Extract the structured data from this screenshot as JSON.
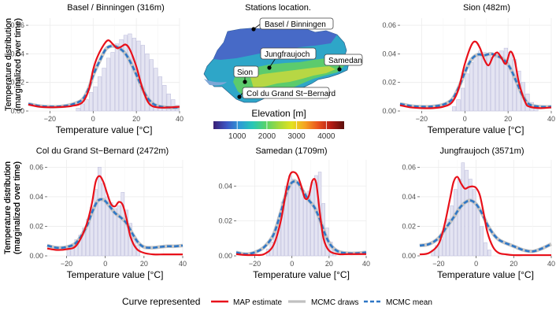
{
  "colors": {
    "map": "#e8101a",
    "draws": "#c0c0c0",
    "mean": "#2f77c6",
    "hist_fill": "#e4e4f2",
    "hist_stroke": "#b9b9da",
    "grid": "#ececec",
    "lake": "#7ea7d6"
  },
  "chart_data": [
    {
      "type": "line",
      "title": "Basel / Binningen (316m)",
      "xlabel": "Temperature value [°C]",
      "ylabel": "Temperature distribution (marginalized over time)",
      "xlim": [
        -30,
        40
      ],
      "ylim": [
        0,
        0.065
      ],
      "xticks": [
        -20,
        0,
        20,
        40
      ],
      "yticks": [
        0,
        0.02,
        0.04,
        0.06
      ],
      "xticklabels": [
        "−20",
        "0",
        "20",
        "40"
      ],
      "yticklabels": [
        "0.00",
        "0.02",
        "0.04",
        "0.06"
      ],
      "grid": true,
      "histogram": {
        "bin_start": -8,
        "bin_width": 2,
        "values": [
          0.002,
          0.005,
          0.008,
          0.013,
          0.017,
          0.024,
          0.03,
          0.037,
          0.041,
          0.047,
          0.05,
          0.053,
          0.054,
          0.051,
          0.049,
          0.046,
          0.04,
          0.036,
          0.03,
          0.024,
          0.018,
          0.012,
          0.008,
          0.004
        ]
      },
      "series": [
        {
          "name": "MAP estimate",
          "x": [
            -30,
            -25,
            -20,
            -15,
            -10,
            -5,
            -2,
            0,
            2,
            5,
            7,
            9,
            11,
            13,
            15,
            17,
            20,
            23,
            26,
            30,
            35,
            40
          ],
          "y": [
            0.0045,
            0.003,
            0.0026,
            0.0028,
            0.0035,
            0.006,
            0.015,
            0.029,
            0.038,
            0.0465,
            0.0495,
            0.047,
            0.044,
            0.045,
            0.0465,
            0.043,
            0.031,
            0.015,
            0.005,
            0.0025,
            0.0025,
            0.003
          ]
        },
        {
          "name": "MCMC draws",
          "x": [
            -30,
            -25,
            -20,
            -15,
            -10,
            -5,
            -2,
            0,
            3,
            6,
            9,
            12,
            15,
            18,
            21,
            24,
            27,
            30,
            35,
            40
          ],
          "y": [
            0.005,
            0.0035,
            0.003,
            0.0032,
            0.0045,
            0.008,
            0.016,
            0.025,
            0.035,
            0.0435,
            0.0455,
            0.044,
            0.04,
            0.032,
            0.022,
            0.012,
            0.006,
            0.0035,
            0.0025,
            0.0025
          ]
        },
        {
          "name": "MCMC mean",
          "x": [
            -30,
            -25,
            -20,
            -15,
            -10,
            -5,
            -2,
            0,
            3,
            6,
            9,
            12,
            15,
            18,
            21,
            24,
            27,
            30,
            35,
            40
          ],
          "y": [
            0.005,
            0.0035,
            0.003,
            0.0032,
            0.0045,
            0.008,
            0.016,
            0.025,
            0.035,
            0.0435,
            0.0455,
            0.044,
            0.04,
            0.032,
            0.022,
            0.012,
            0.006,
            0.0035,
            0.0025,
            0.0025
          ]
        }
      ]
    },
    {
      "type": "line",
      "title": "Sion (482m)",
      "xlabel": "Temperature value [°C]",
      "ylabel": "Temperature distribution (marginalized over time)",
      "xlim": [
        -30,
        40
      ],
      "ylim": [
        0,
        0.065
      ],
      "xticks": [
        -20,
        0,
        20,
        40
      ],
      "yticks": [
        0,
        0.02,
        0.04,
        0.06
      ],
      "xticklabels": [
        "−20",
        "0",
        "20",
        "40"
      ],
      "yticklabels": [
        "0.00",
        "0.02",
        "0.04",
        "0.06"
      ],
      "grid": true,
      "histogram": {
        "bin_start": -6,
        "bin_width": 2,
        "values": [
          0.003,
          0.008,
          0.016,
          0.026,
          0.034,
          0.039,
          0.042,
          0.041,
          0.039,
          0.038,
          0.04,
          0.042,
          0.044,
          0.041,
          0.036,
          0.028,
          0.02,
          0.012,
          0.006,
          0.003
        ]
      },
      "series": [
        {
          "name": "MAP estimate",
          "x": [
            -30,
            -25,
            -20,
            -15,
            -10,
            -6,
            -3,
            0,
            3,
            5,
            7,
            9,
            11,
            13,
            15,
            17,
            19,
            21,
            23,
            25,
            28,
            30,
            35,
            40
          ],
          "y": [
            0.004,
            0.0025,
            0.002,
            0.002,
            0.003,
            0.006,
            0.015,
            0.033,
            0.046,
            0.0485,
            0.044,
            0.036,
            0.032,
            0.038,
            0.041,
            0.037,
            0.033,
            0.0415,
            0.036,
            0.02,
            0.006,
            0.003,
            0.002,
            0.0025
          ]
        },
        {
          "name": "MCMC draws",
          "x": [
            -30,
            -25,
            -20,
            -15,
            -10,
            -6,
            -3,
            0,
            3,
            6,
            9,
            12,
            15,
            18,
            21,
            24,
            27,
            30,
            35,
            40
          ],
          "y": [
            0.005,
            0.0035,
            0.003,
            0.0032,
            0.0045,
            0.008,
            0.016,
            0.027,
            0.036,
            0.0395,
            0.039,
            0.04,
            0.0385,
            0.036,
            0.03,
            0.02,
            0.01,
            0.0045,
            0.003,
            0.003
          ]
        },
        {
          "name": "MCMC mean",
          "x": [
            -30,
            -25,
            -20,
            -15,
            -10,
            -6,
            -3,
            0,
            3,
            6,
            9,
            12,
            15,
            18,
            21,
            24,
            27,
            30,
            35,
            40
          ],
          "y": [
            0.005,
            0.0035,
            0.003,
            0.0032,
            0.0045,
            0.008,
            0.016,
            0.027,
            0.036,
            0.0395,
            0.039,
            0.04,
            0.0385,
            0.036,
            0.03,
            0.02,
            0.01,
            0.0045,
            0.003,
            0.003
          ]
        }
      ]
    },
    {
      "type": "line",
      "title": "Col du Grand St−Bernard (2472m)",
      "xlabel": "Temperature value [°C]",
      "ylabel": "Temperature distribution (marginalized over time)",
      "xlim": [
        -30,
        40
      ],
      "ylim": [
        0,
        0.065
      ],
      "xticks": [
        -20,
        0,
        20,
        40
      ],
      "yticks": [
        0,
        0.02,
        0.04,
        0.06
      ],
      "xticklabels": [
        "−20",
        "0",
        "20",
        "40"
      ],
      "yticklabels": [
        "0.00",
        "0.02",
        "0.04",
        "0.06"
      ],
      "grid": true,
      "histogram": {
        "bin_start": -20,
        "bin_width": 2,
        "values": [
          0.006,
          0.008,
          0.011,
          0.014,
          0.019,
          0.025,
          0.033,
          0.045,
          0.06,
          0.049,
          0.04,
          0.036,
          0.032,
          0.034,
          0.043,
          0.031,
          0.022,
          0.013,
          0.007
        ]
      },
      "series": [
        {
          "name": "MAP estimate",
          "x": [
            -30,
            -25,
            -20,
            -15,
            -10,
            -7,
            -5,
            -3,
            -1,
            1,
            3,
            5,
            7,
            9,
            11,
            13,
            16,
            20,
            25,
            30,
            35,
            40
          ],
          "y": [
            0.005,
            0.004,
            0.0045,
            0.007,
            0.02,
            0.035,
            0.05,
            0.054,
            0.05,
            0.042,
            0.035,
            0.0335,
            0.0365,
            0.0345,
            0.025,
            0.013,
            0.005,
            0.002,
            0.001,
            0.001,
            0.001,
            0.001
          ]
        },
        {
          "name": "MCMC draws",
          "x": [
            -30,
            -25,
            -20,
            -15,
            -10,
            -7,
            -4,
            -1,
            2,
            5,
            8,
            11,
            14,
            17,
            20,
            24,
            28,
            32,
            36,
            40
          ],
          "y": [
            0.007,
            0.0055,
            0.006,
            0.009,
            0.019,
            0.029,
            0.037,
            0.038,
            0.034,
            0.029,
            0.026,
            0.022,
            0.015,
            0.009,
            0.006,
            0.0055,
            0.006,
            0.0065,
            0.0065,
            0.007
          ]
        },
        {
          "name": "MCMC mean",
          "x": [
            -30,
            -25,
            -20,
            -15,
            -10,
            -7,
            -4,
            -1,
            2,
            5,
            8,
            11,
            14,
            17,
            20,
            24,
            28,
            32,
            36,
            40
          ],
          "y": [
            0.007,
            0.0055,
            0.006,
            0.009,
            0.019,
            0.029,
            0.037,
            0.038,
            0.034,
            0.029,
            0.026,
            0.022,
            0.015,
            0.009,
            0.006,
            0.0055,
            0.006,
            0.0065,
            0.0065,
            0.007
          ]
        }
      ]
    },
    {
      "type": "line",
      "title": "Samedan (1709m)",
      "xlabel": "Temperature value [°C]",
      "ylabel": "Temperature distribution (marginalized over time)",
      "xlim": [
        -30,
        40
      ],
      "ylim": [
        0,
        0.055
      ],
      "xticks": [
        -20,
        0,
        20,
        40
      ],
      "yticks": [
        0,
        0.02,
        0.04
      ],
      "xticklabels": [
        "−20",
        "0",
        "20",
        "40"
      ],
      "yticklabels": [
        "0.00",
        "0.02",
        "0.04"
      ],
      "grid": true,
      "histogram": {
        "bin_start": -14,
        "bin_width": 2,
        "values": [
          0.004,
          0.008,
          0.014,
          0.022,
          0.031,
          0.04,
          0.046,
          0.044,
          0.041,
          0.038,
          0.036,
          0.037,
          0.042,
          0.046,
          0.048,
          0.03,
          0.016,
          0.008,
          0.003
        ]
      },
      "series": [
        {
          "name": "MAP estimate",
          "x": [
            -30,
            -25,
            -20,
            -15,
            -10,
            -6,
            -3,
            -1,
            1,
            3,
            5,
            7,
            9,
            11,
            13,
            15,
            17,
            20,
            25,
            30,
            35,
            40
          ],
          "y": [
            0.001,
            0.0005,
            0.0005,
            0.001,
            0.006,
            0.02,
            0.038,
            0.0465,
            0.048,
            0.046,
            0.04,
            0.033,
            0.034,
            0.043,
            0.042,
            0.025,
            0.01,
            0.003,
            0.001,
            0.001,
            0.001,
            0.001
          ]
        },
        {
          "name": "MCMC draws",
          "x": [
            -30,
            -25,
            -20,
            -15,
            -10,
            -6,
            -3,
            0,
            3,
            6,
            9,
            12,
            15,
            18,
            21,
            25,
            30,
            35,
            40
          ],
          "y": [
            0.002,
            0.001,
            0.002,
            0.005,
            0.012,
            0.025,
            0.036,
            0.042,
            0.042,
            0.037,
            0.032,
            0.028,
            0.021,
            0.012,
            0.006,
            0.0025,
            0.0015,
            0.0015,
            0.002
          ]
        },
        {
          "name": "MCMC mean",
          "x": [
            -30,
            -25,
            -20,
            -15,
            -10,
            -6,
            -3,
            0,
            3,
            6,
            9,
            12,
            15,
            18,
            21,
            25,
            30,
            35,
            40
          ],
          "y": [
            0.002,
            0.001,
            0.002,
            0.005,
            0.012,
            0.025,
            0.036,
            0.042,
            0.042,
            0.037,
            0.032,
            0.028,
            0.021,
            0.012,
            0.006,
            0.0025,
            0.0015,
            0.0015,
            0.002
          ]
        }
      ]
    },
    {
      "type": "line",
      "title": "Jungfraujoch (3571m)",
      "xlabel": "Temperature value [°C]",
      "ylabel": "Temperature distribution (marginalized over time)",
      "xlim": [
        -30,
        40
      ],
      "ylim": [
        0,
        0.065
      ],
      "xticks": [
        -20,
        0,
        20,
        40
      ],
      "yticks": [
        0,
        0.02,
        0.04,
        0.06
      ],
      "xticklabels": [
        "−20",
        "0",
        "20",
        "40"
      ],
      "yticklabels": [
        "0.00",
        "0.02",
        "0.04",
        "0.06"
      ],
      "grid": true,
      "histogram": {
        "bin_start": -24,
        "bin_width": 2,
        "values": [
          0.004,
          0.007,
          0.011,
          0.017,
          0.025,
          0.034,
          0.045,
          0.052,
          0.063,
          0.058,
          0.052,
          0.045,
          0.033,
          0.02,
          0.009,
          0.004
        ]
      },
      "series": [
        {
          "name": "MAP estimate",
          "x": [
            -30,
            -25,
            -20,
            -17,
            -14,
            -12,
            -10,
            -8,
            -6,
            -4,
            -2,
            0,
            2,
            4,
            6,
            9,
            12,
            16,
            20,
            25,
            30,
            35,
            40
          ],
          "y": [
            0.001,
            0.002,
            0.008,
            0.02,
            0.038,
            0.05,
            0.0535,
            0.049,
            0.0455,
            0.0465,
            0.047,
            0.046,
            0.041,
            0.029,
            0.016,
            0.006,
            0.002,
            0.001,
            0.0005,
            0.0005,
            0.0005,
            0.0005,
            0.0005
          ]
        },
        {
          "name": "MCMC draws",
          "x": [
            -30,
            -25,
            -20,
            -16,
            -12,
            -9,
            -6,
            -3,
            0,
            3,
            6,
            9,
            12,
            15,
            18,
            21,
            25,
            30,
            35,
            40
          ],
          "y": [
            0.007,
            0.008,
            0.012,
            0.019,
            0.026,
            0.032,
            0.036,
            0.0375,
            0.035,
            0.029,
            0.021,
            0.015,
            0.011,
            0.009,
            0.0075,
            0.006,
            0.004,
            0.003,
            0.005,
            0.008
          ]
        },
        {
          "name": "MCMC mean",
          "x": [
            -30,
            -25,
            -20,
            -16,
            -12,
            -9,
            -6,
            -3,
            0,
            3,
            6,
            9,
            12,
            15,
            18,
            21,
            25,
            30,
            35,
            40
          ],
          "y": [
            0.007,
            0.008,
            0.012,
            0.019,
            0.026,
            0.032,
            0.036,
            0.0375,
            0.035,
            0.029,
            0.021,
            0.015,
            0.011,
            0.009,
            0.0075,
            0.006,
            0.004,
            0.003,
            0.005,
            0.008
          ]
        }
      ]
    }
  ],
  "map_panel": {
    "title": "Stations location.",
    "stations": [
      {
        "name": "Basel / Binningen"
      },
      {
        "name": "Jungfraujoch"
      },
      {
        "name": "Samedan"
      },
      {
        "name": "Sion"
      },
      {
        "name": "Col du Grand St−Bernard"
      }
    ],
    "colorbar": {
      "title": "Elevation [m]",
      "ticks": [
        "1000",
        "2000",
        "3000",
        "4000"
      ],
      "tick_values": [
        1000,
        2000,
        3000,
        4000
      ],
      "range": [
        200,
        4600
      ],
      "palette": [
        "#3a1f74",
        "#3b55c4",
        "#2e9ad6",
        "#28c7b6",
        "#57d36a",
        "#a3d93c",
        "#e3e21f",
        "#f5a321",
        "#e9531d",
        "#b41b14",
        "#5a0f0c"
      ]
    }
  },
  "legend": {
    "title": "Curve represented",
    "items": [
      {
        "label": "MAP estimate"
      },
      {
        "label": "MCMC draws"
      },
      {
        "label": "MCMC mean"
      }
    ]
  }
}
